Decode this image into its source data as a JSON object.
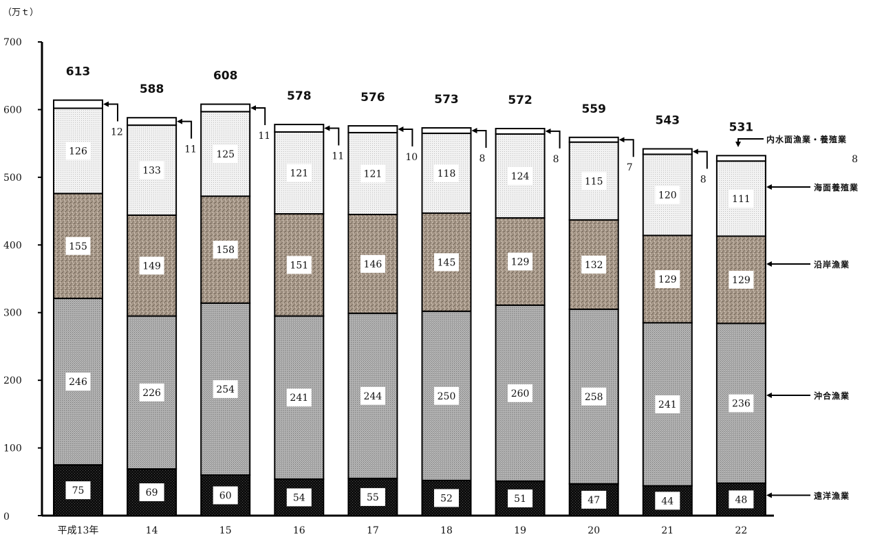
{
  "chart_data": {
    "type": "bar",
    "stacked": true,
    "unit_label": "（万ｔ）",
    "categories": [
      "平成13年",
      "14",
      "15",
      "16",
      "17",
      "18",
      "19",
      "20",
      "21",
      "22"
    ],
    "ylim": [
      0,
      700
    ],
    "yticks": [
      0,
      100,
      200,
      300,
      400,
      500,
      600,
      700
    ],
    "totals": [
      613,
      588,
      608,
      578,
      576,
      573,
      572,
      559,
      543,
      531
    ],
    "series": [
      {
        "name": "遠洋漁業",
        "values": [
          75,
          69,
          60,
          54,
          55,
          52,
          51,
          47,
          44,
          48
        ],
        "color": "#111111"
      },
      {
        "name": "沖合漁業",
        "values": [
          246,
          226,
          254,
          241,
          244,
          250,
          260,
          258,
          241,
          236
        ],
        "color": "#a3a3a3"
      },
      {
        "name": "沿岸漁業",
        "values": [
          155,
          149,
          158,
          151,
          146,
          145,
          129,
          132,
          129,
          129
        ],
        "color": "#9a8a78"
      },
      {
        "name": "海面養殖業",
        "values": [
          126,
          133,
          125,
          121,
          121,
          118,
          124,
          115,
          120,
          111
        ],
        "color": "#e6e6e6"
      },
      {
        "name": "内水面漁業・養殖業",
        "values": [
          12,
          11,
          11,
          11,
          10,
          8,
          8,
          7,
          8,
          8
        ],
        "color": "#ffffff"
      }
    ],
    "legend_placement": "right",
    "grid": false
  }
}
